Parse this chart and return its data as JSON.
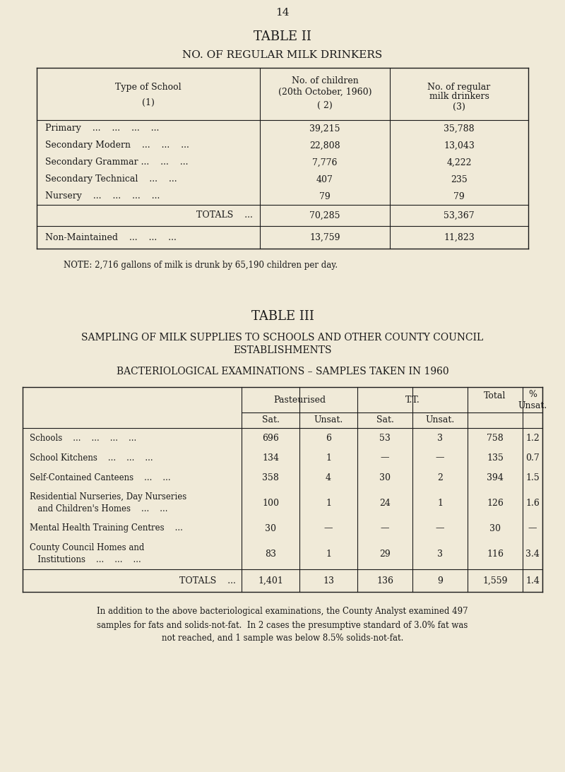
{
  "bg_color": "#f0ead8",
  "text_color": "#1a1a1a",
  "page_num": "14",
  "table2": {
    "title": "TABLE II",
    "subtitle": "NO. OF REGULAR MILK DRINKERS",
    "data_rows": [
      [
        "Primary    ...    ...    ...    ...",
        "39,215",
        "35,788"
      ],
      [
        "Secondary Modern    ...    ...    ...",
        "22,808",
        "13,043"
      ],
      [
        "Secondary Grammar ...    ...    ...",
        "7,776",
        "4,222"
      ],
      [
        "Secondary Technical    ...    ...",
        "407",
        "235"
      ],
      [
        "Nursery    ...    ...    ...    ...",
        "79",
        "79"
      ]
    ],
    "totals_row": [
      "TOTALS    ...",
      "70,285",
      "53,367"
    ],
    "non_maintained_row": [
      "Non-Maintained    ...    ...    ...",
      "13,759",
      "11,823"
    ],
    "note": "NOTE: 2,716 gallons of milk is drunk by 65,190 children per day."
  },
  "table3": {
    "title": "TABLE III",
    "subtitle1": "SAMPLING OF MILK SUPPLIES TO SCHOOLS AND OTHER COUNTY COUNCIL",
    "subtitle2": "ESTABLISHMENTS",
    "subtitle3": "BACTERIOLOGICAL EXAMINATIONS – SAMPLES TAKEN IN 1960",
    "data_rows": [
      [
        "Schools    ...    ...    ...    ...",
        "696",
        "6",
        "53",
        "3",
        "758",
        "1.2"
      ],
      [
        "School Kitchens    ...    ...    ...",
        "134",
        "1",
        "—",
        "—",
        "135",
        "0.7"
      ],
      [
        "Self-Contained Canteens    ...    ...",
        "358",
        "4",
        "30",
        "2",
        "394",
        "1.5"
      ],
      [
        "Residential Nurseries, Day Nurseries\n   and Children's Homes    ...    ...",
        "100",
        "1",
        "24",
        "1",
        "126",
        "1.6"
      ],
      [
        "Mental Health Training Centres    ...",
        "30",
        "—",
        "—",
        "—",
        "30",
        "—"
      ],
      [
        "County Council Homes and\n   Institutions    ...    ...    ...",
        "83",
        "1",
        "29",
        "3",
        "116",
        "3.4"
      ]
    ],
    "totals_row": [
      "TOTALS    ...",
      "1,401",
      "13",
      "136",
      "9",
      "1,559",
      "1.4"
    ],
    "footer_lines": [
      "In addition to the above bacteriological examinations, the County Analyst examined 497",
      "samples for fats and solids-not-fat.  In 2 cases the presumptive standard of 3.0% fat was",
      "not reached, and 1 sample was below 8.5% solids-not-fat."
    ]
  }
}
